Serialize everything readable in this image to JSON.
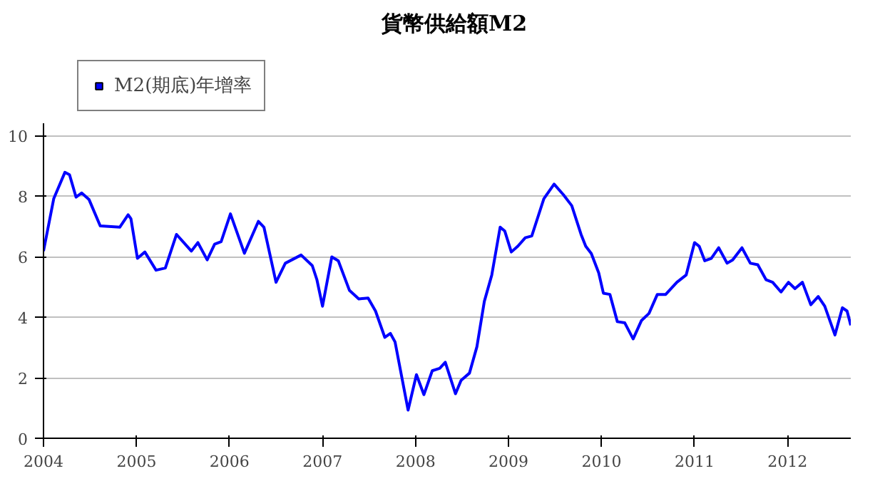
{
  "chart_data": {
    "type": "line",
    "title": "貨幣供給額M2",
    "x": [
      2004.0,
      2004.11,
      2004.23,
      2004.28,
      2004.35,
      2004.41,
      2004.49,
      2004.61,
      2004.82,
      2004.91,
      2004.94,
      2005.01,
      2005.09,
      2005.21,
      2005.31,
      2005.43,
      2005.59,
      2005.66,
      2005.76,
      2005.84,
      2005.91,
      2006.01,
      2006.16,
      2006.31,
      2006.37,
      2006.5,
      2006.6,
      2006.77,
      2006.89,
      2006.94,
      2007.0,
      2007.1,
      2007.17,
      2007.29,
      2007.39,
      2007.49,
      2007.57,
      2007.67,
      2007.73,
      2007.78,
      2007.92,
      2008.01,
      2008.09,
      2008.18,
      2008.26,
      2008.32,
      2008.43,
      2008.49,
      2008.58,
      2008.66,
      2008.74,
      2008.82,
      2008.91,
      2008.96,
      2009.03,
      2009.1,
      2009.18,
      2009.25,
      2009.38,
      2009.49,
      2009.59,
      2009.68,
      2009.78,
      2009.83,
      2009.89,
      2009.97,
      2010.02,
      2010.09,
      2010.17,
      2010.25,
      2010.34,
      2010.43,
      2010.51,
      2010.6,
      2010.69,
      2010.81,
      2010.91,
      2011.0,
      2011.05,
      2011.11,
      2011.18,
      2011.26,
      2011.35,
      2011.41,
      2011.51,
      2011.6,
      2011.68,
      2011.77,
      2011.84,
      2011.93,
      2012.01,
      2012.08,
      2012.16,
      2012.25,
      2012.33,
      2012.4,
      2012.51,
      2012.59,
      2012.64,
      2012.68
    ],
    "series": [
      {
        "name": "M2(期底)年增率",
        "color": "#0000ff",
        "values": [
          6.18,
          7.91,
          8.78,
          8.7,
          7.96,
          8.1,
          7.88,
          7.01,
          6.97,
          7.38,
          7.25,
          5.94,
          6.15,
          5.55,
          5.62,
          6.73,
          6.18,
          6.46,
          5.89,
          6.41,
          6.49,
          7.41,
          6.11,
          7.16,
          6.97,
          5.15,
          5.78,
          6.05,
          5.7,
          5.23,
          4.36,
          5.99,
          5.86,
          4.88,
          4.6,
          4.63,
          4.2,
          3.33,
          3.46,
          3.18,
          0.93,
          2.1,
          1.44,
          2.23,
          2.31,
          2.51,
          1.47,
          1.91,
          2.15,
          3.02,
          4.52,
          5.39,
          6.97,
          6.84,
          6.15,
          6.34,
          6.62,
          6.68,
          7.91,
          8.39,
          8.04,
          7.68,
          6.73,
          6.34,
          6.1,
          5.46,
          4.79,
          4.75,
          3.85,
          3.81,
          3.28,
          3.89,
          4.12,
          4.75,
          4.75,
          5.15,
          5.39,
          6.46,
          6.34,
          5.86,
          5.94,
          6.29,
          5.78,
          5.89,
          6.29,
          5.78,
          5.73,
          5.23,
          5.15,
          4.83,
          5.15,
          4.94,
          5.15,
          4.41,
          4.68,
          4.36,
          3.41,
          4.31,
          4.2,
          3.73
        ]
      }
    ],
    "xlim": [
      2004,
      2012.68
    ],
    "xticks": [
      2004,
      2005,
      2006,
      2007,
      2008,
      2009,
      2010,
      2011,
      2012
    ],
    "ylim": [
      0,
      10.4
    ],
    "yticks": [
      0,
      2,
      4,
      6,
      8,
      10
    ],
    "grid": "y",
    "legend": "top left",
    "marker": "none",
    "line_style": "solid"
  }
}
